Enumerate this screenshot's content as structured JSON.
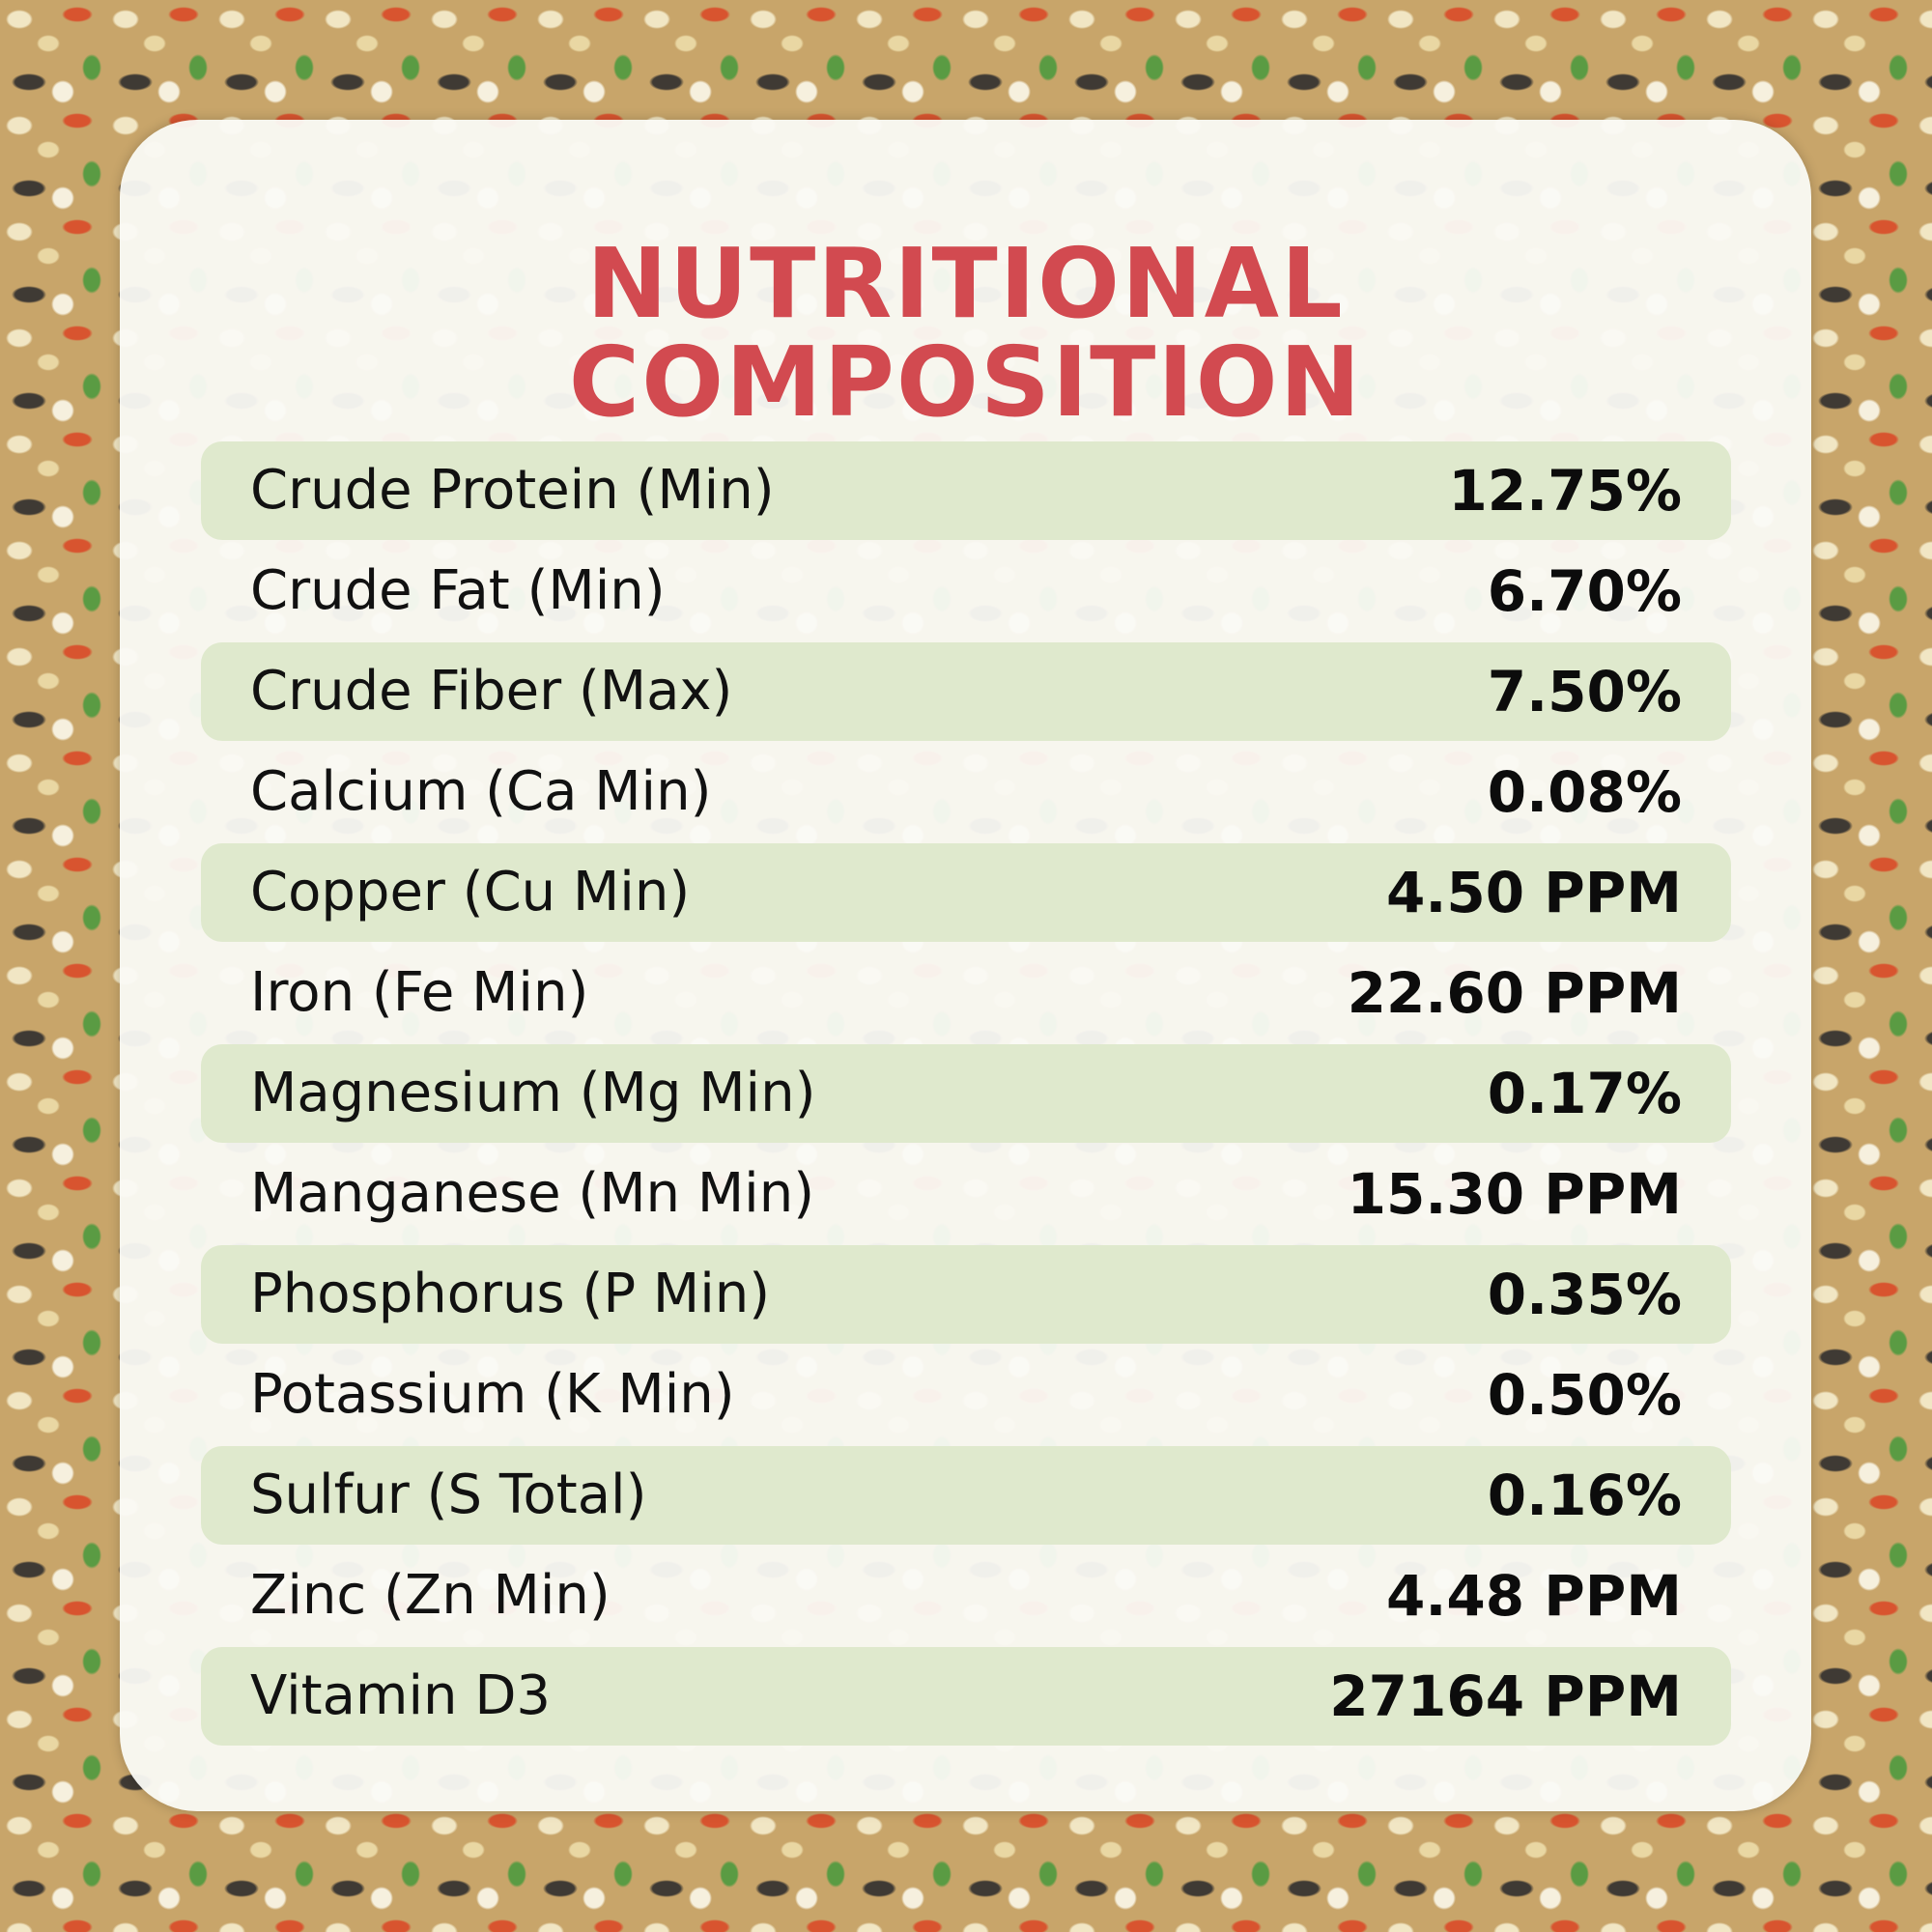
{
  "title": [
    "NUTRITIONAL",
    "COMPOSITION"
  ],
  "table": {
    "rows": [
      [
        "Crude Protein (Min)",
        "12.75%"
      ],
      [
        "Crude Fat (Min)",
        "6.70%"
      ],
      [
        "Crude Fiber (Max)",
        "7.50%"
      ],
      [
        "Calcium (Ca Min)",
        "0.08%"
      ],
      [
        "Copper (Cu Min)",
        "4.50 PPM"
      ],
      [
        "Iron (Fe Min)",
        "22.60 PPM"
      ],
      [
        "Magnesium (Mg Min)",
        "0.17%"
      ],
      [
        "Manganese (Mn Min)",
        "15.30 PPM"
      ],
      [
        "Phosphorus (P Min)",
        "0.35%"
      ],
      [
        "Potassium (K Min)",
        "0.50%"
      ],
      [
        "Sulfur (S Total)",
        "0.16%"
      ],
      [
        "Zinc (Zn Min)",
        "4.48 PPM"
      ],
      [
        "Vitamin D3",
        "27164 PPM"
      ]
    ]
  }
}
